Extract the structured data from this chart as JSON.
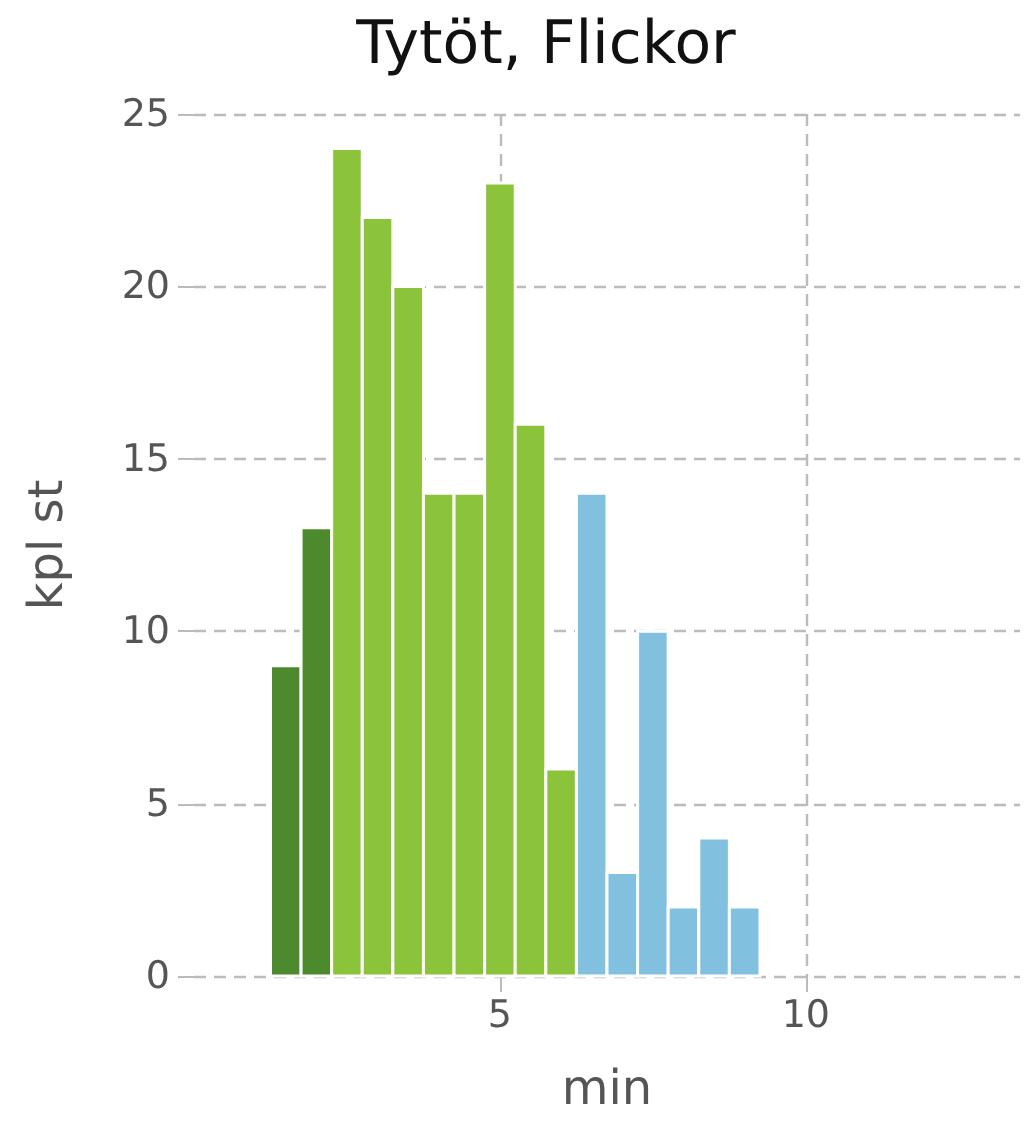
{
  "chart_data": {
    "type": "histogram",
    "title": "Tytöt, Flickor",
    "xlabel": "min",
    "ylabel": "kpl st",
    "bins": [
      1.25,
      1.75,
      2.25,
      2.75,
      3.25,
      3.75,
      4.25,
      4.75,
      5.25,
      5.75,
      6.25,
      6.75,
      7.25,
      7.75,
      8.25,
      8.75,
      9.25
    ],
    "values": [
      9,
      13,
      24,
      22,
      20,
      14,
      14,
      23,
      16,
      6,
      14,
      3,
      10,
      2,
      4,
      2
    ],
    "colors": [
      "#4d8a2e",
      "#4d8a2e",
      "#8bc33a",
      "#8bc33a",
      "#8bc33a",
      "#8bc33a",
      "#8bc33a",
      "#8bc33a",
      "#8bc33a",
      "#8bc33a",
      "#82c0e0",
      "#82c0e0",
      "#82c0e0",
      "#82c0e0",
      "#82c0e0",
      "#82c0e0"
    ],
    "xlim": [
      0,
      13.5
    ],
    "xticks": [
      5,
      10
    ],
    "ylim": [
      0,
      25
    ],
    "yticks": [
      0,
      5,
      10,
      15,
      20,
      25
    ],
    "grid": true
  }
}
